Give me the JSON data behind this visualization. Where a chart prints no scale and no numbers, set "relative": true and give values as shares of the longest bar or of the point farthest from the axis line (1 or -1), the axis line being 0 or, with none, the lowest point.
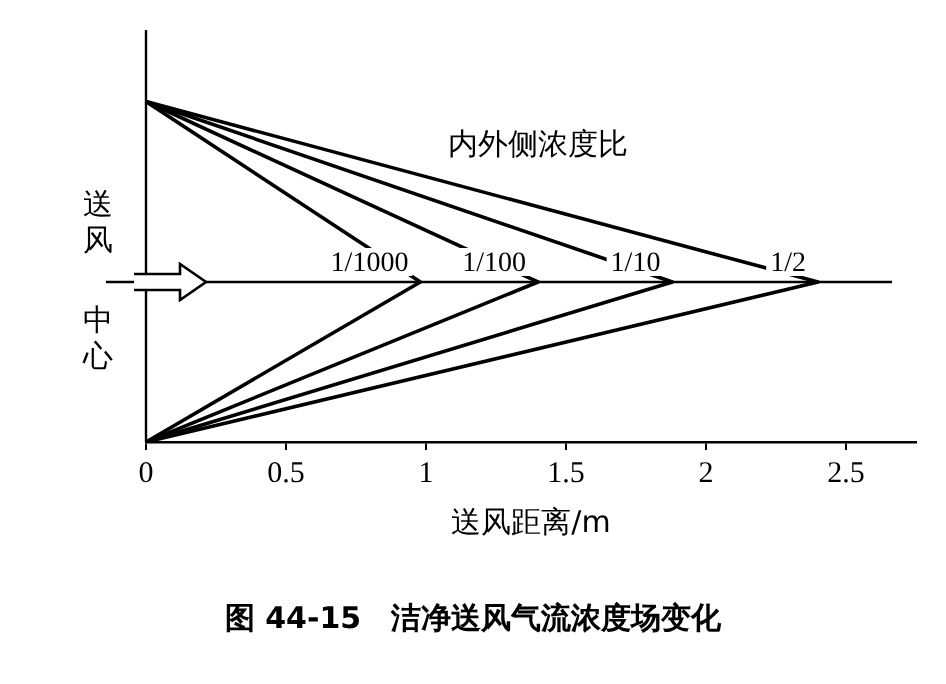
{
  "chart_data": {
    "type": "line",
    "relative": true,
    "xlabel": "送风距离/m",
    "xlim": [
      0,
      2.75
    ],
    "xticks": [
      0,
      0.5,
      1,
      1.5,
      2,
      2.5
    ],
    "grid": false,
    "legend": false,
    "marker": "none",
    "line_style": "solid",
    "series": [
      {
        "name": "1/1000",
        "color": "#000000",
        "x": [
          0,
          0.98,
          0
        ],
        "values": [
          1,
          0.47,
          0
        ]
      },
      {
        "name": "1/100",
        "color": "#000000",
        "x": [
          0,
          1.4,
          0
        ],
        "values": [
          1,
          0.47,
          0
        ]
      },
      {
        "name": "1/10",
        "color": "#000000",
        "x": [
          0,
          1.88,
          0
        ],
        "values": [
          1,
          0.47,
          0
        ]
      },
      {
        "name": "1/2",
        "color": "#000000",
        "x": [
          0,
          2.4,
          0
        ],
        "values": [
          1,
          0.47,
          0
        ]
      }
    ],
    "ref_lines": [
      {
        "axis": "y",
        "value": 0.47,
        "label": "送风中心",
        "color": "#000000"
      }
    ],
    "annotations": [
      "内外侧浓度比",
      "图 44-15　洁净送风气流浓度场变化"
    ]
  }
}
